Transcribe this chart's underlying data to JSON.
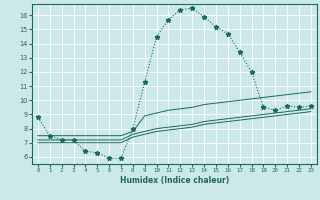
{
  "xlabel": "Humidex (Indice chaleur)",
  "xlim": [
    -0.5,
    23.5
  ],
  "ylim": [
    5.5,
    16.8
  ],
  "yticks": [
    6,
    7,
    8,
    9,
    10,
    11,
    12,
    13,
    14,
    15,
    16
  ],
  "xticks": [
    0,
    1,
    2,
    3,
    4,
    5,
    6,
    7,
    8,
    9,
    10,
    11,
    12,
    13,
    14,
    15,
    16,
    17,
    18,
    19,
    20,
    21,
    22,
    23
  ],
  "bg_color": "#cce8e8",
  "grid_color": "#ffffff",
  "line_color": "#1a6b5a",
  "line1_x": [
    0,
    1,
    2,
    3,
    4,
    5,
    6,
    7,
    8,
    9,
    10,
    11,
    12,
    13,
    14,
    15,
    16,
    17,
    18,
    19,
    20,
    21,
    22,
    23
  ],
  "line1_y": [
    8.8,
    7.5,
    7.2,
    7.2,
    6.4,
    6.3,
    5.9,
    5.9,
    8.0,
    11.3,
    14.5,
    15.7,
    16.4,
    16.5,
    15.9,
    15.2,
    14.7,
    13.4,
    12.0,
    9.5,
    9.3,
    9.6,
    9.5,
    9.6
  ],
  "line2_x": [
    0,
    7,
    8,
    9,
    10,
    11,
    12,
    13,
    14,
    15,
    16,
    17,
    18,
    19,
    20,
    21,
    22,
    23
  ],
  "line2_y": [
    7.5,
    7.5,
    7.8,
    8.9,
    9.1,
    9.3,
    9.4,
    9.5,
    9.7,
    9.8,
    9.9,
    10.0,
    10.1,
    10.2,
    10.3,
    10.4,
    10.5,
    10.6
  ],
  "line3_x": [
    0,
    7,
    8,
    9,
    10,
    11,
    12,
    13,
    14,
    15,
    16,
    17,
    18,
    19,
    20,
    21,
    22,
    23
  ],
  "line3_y": [
    7.2,
    7.2,
    7.6,
    7.8,
    8.0,
    8.1,
    8.2,
    8.3,
    8.5,
    8.6,
    8.7,
    8.8,
    8.9,
    9.0,
    9.1,
    9.2,
    9.3,
    9.4
  ],
  "line4_x": [
    0,
    7,
    8,
    9,
    10,
    11,
    12,
    13,
    14,
    15,
    16,
    17,
    18,
    19,
    20,
    21,
    22,
    23
  ],
  "line4_y": [
    7.0,
    7.0,
    7.4,
    7.6,
    7.8,
    7.9,
    8.0,
    8.1,
    8.3,
    8.4,
    8.5,
    8.6,
    8.7,
    8.8,
    8.9,
    9.0,
    9.1,
    9.2
  ]
}
